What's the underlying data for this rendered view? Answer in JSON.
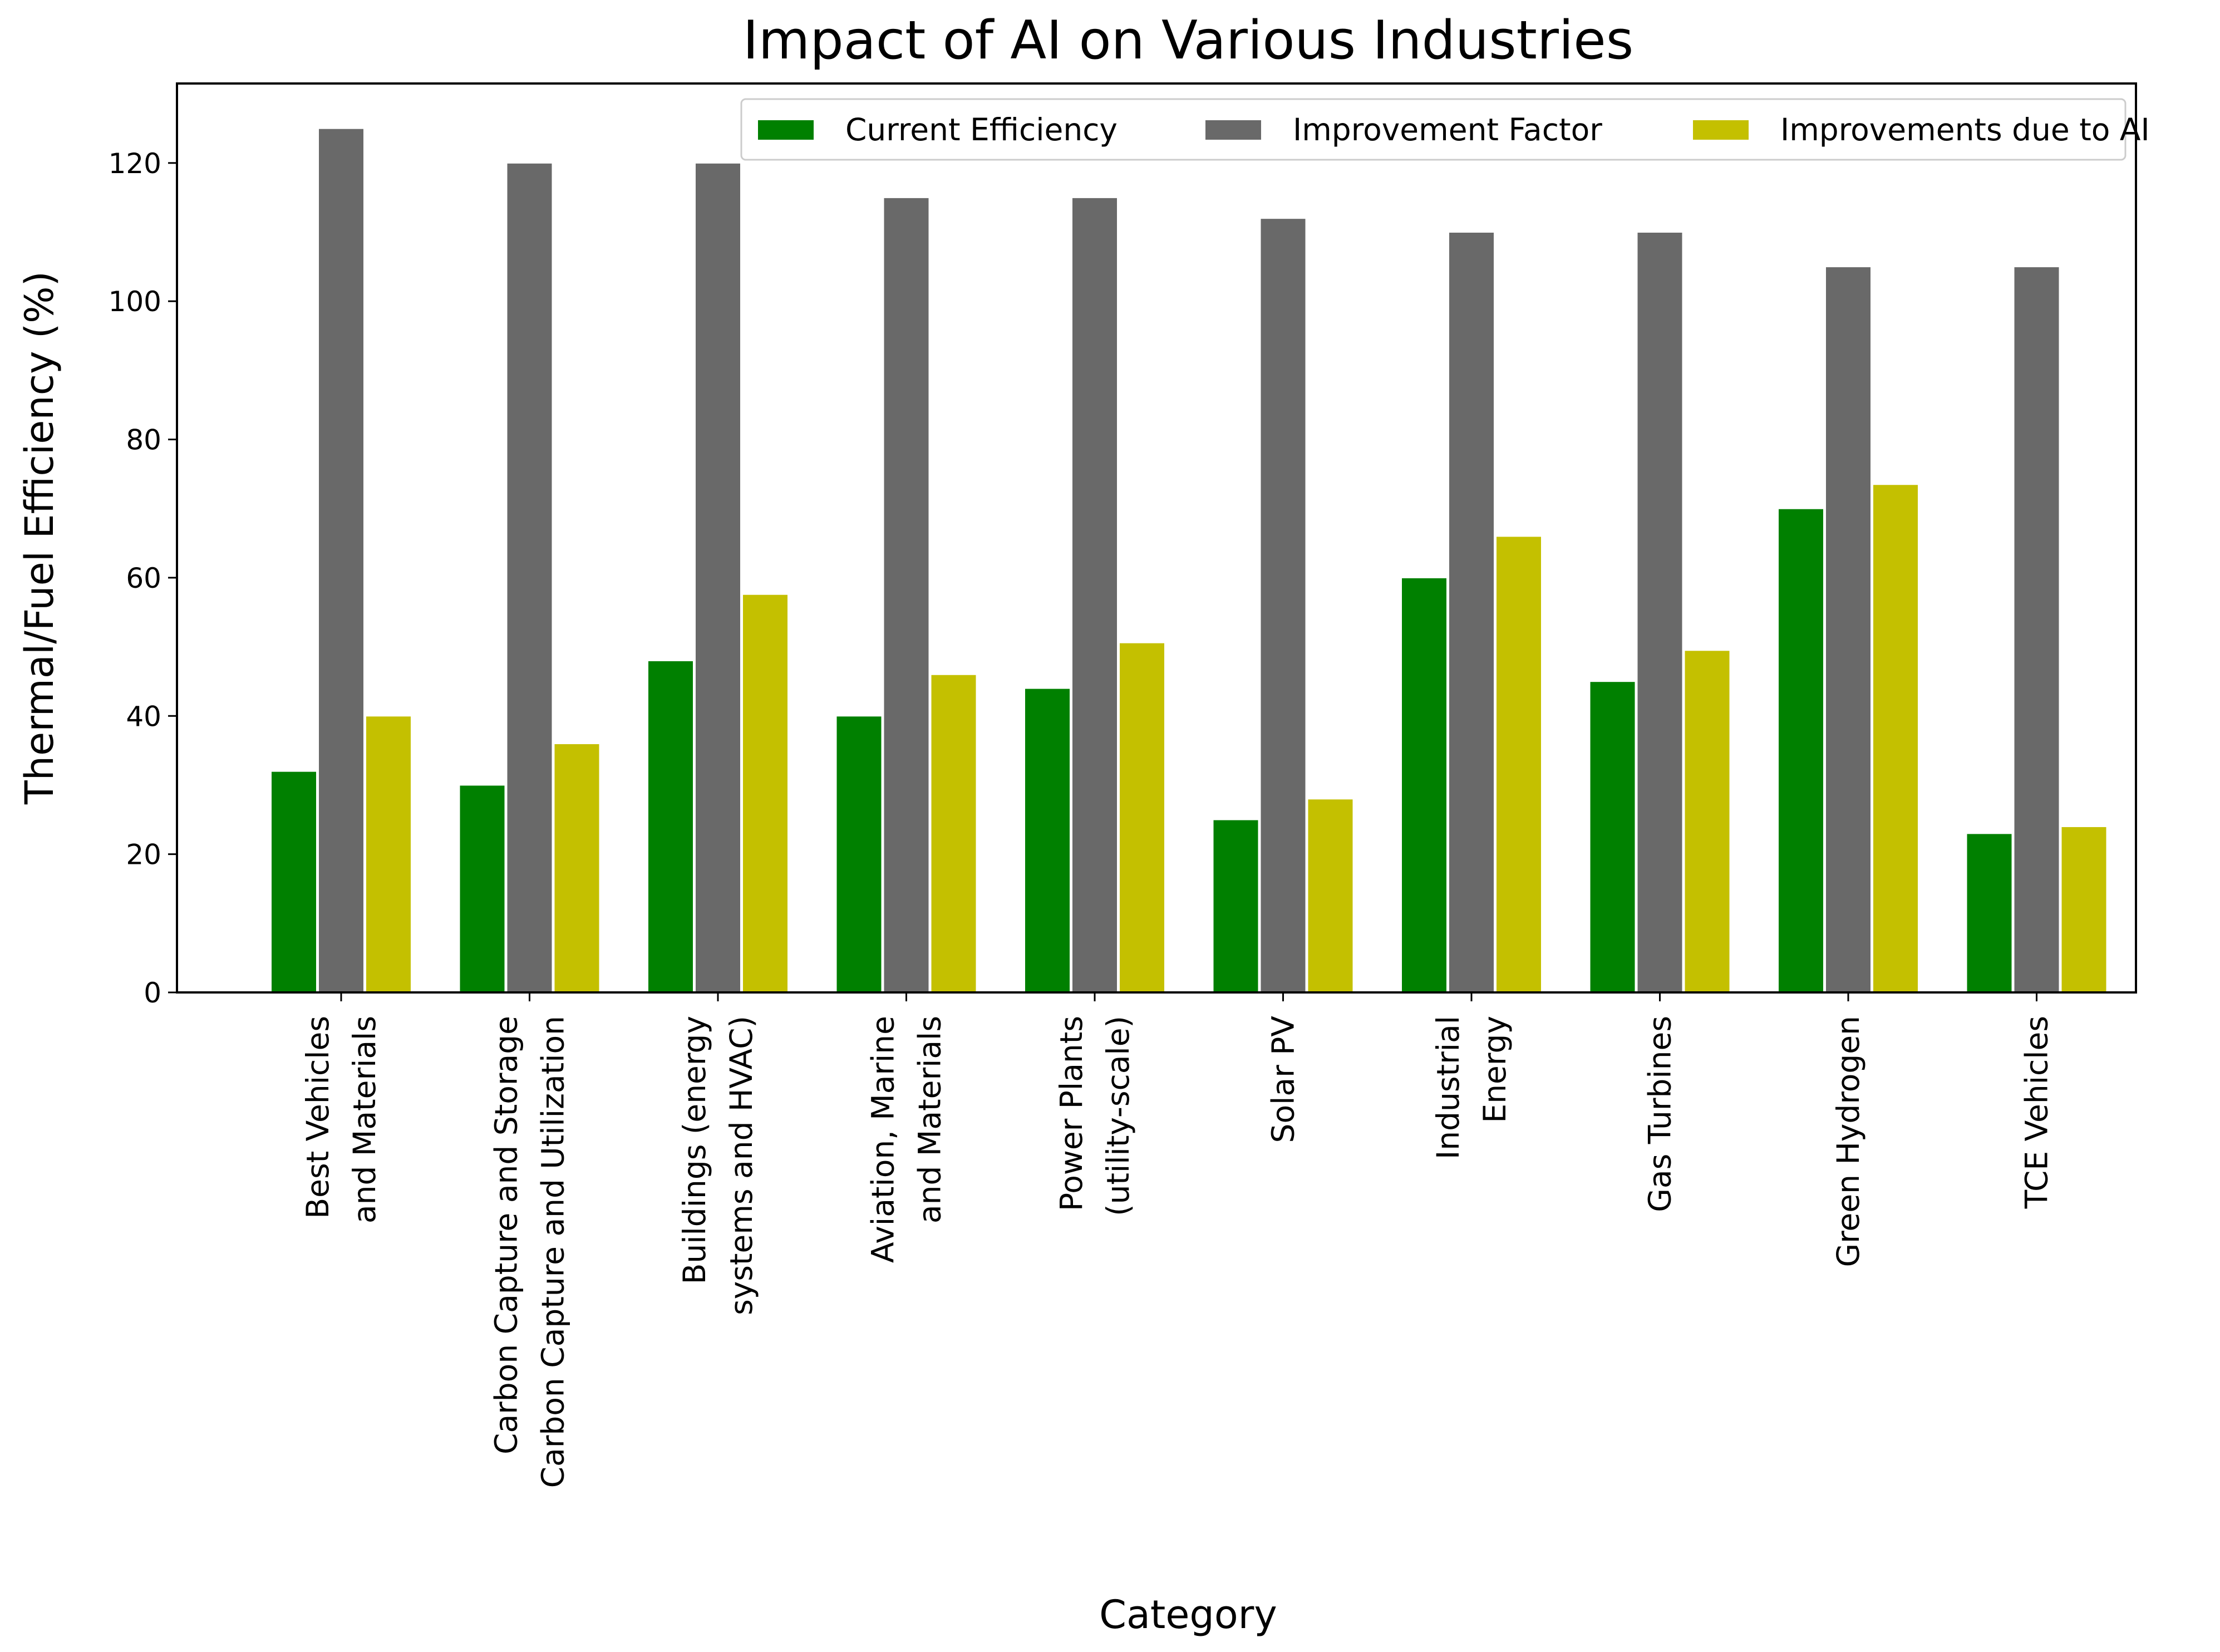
{
  "chart_data": {
    "type": "bar",
    "title": "Impact of AI on Various Industries",
    "xlabel": "Category",
    "ylabel": "Thermal/Fuel Efficiency (%)",
    "ylim": [
      0,
      131.5
    ],
    "yticks": [
      0,
      20,
      40,
      60,
      80,
      100,
      120
    ],
    "grid": false,
    "legend_position": "top-right",
    "categories": [
      [
        "Best Vehicles",
        "and Materials"
      ],
      [
        "Carbon Capture and Storage",
        "Carbon Capture and Utilization"
      ],
      [
        "Buildings (energy",
        "systems and HVAC)"
      ],
      [
        "Aviation, Marine",
        "and Materials"
      ],
      [
        "Power Plants",
        "(utility-scale)"
      ],
      [
        "Solar PV"
      ],
      [
        "Industrial",
        "Energy"
      ],
      [
        "Gas Turbines"
      ],
      [
        "Green Hydrogen"
      ],
      [
        "TCE Vehicles"
      ]
    ],
    "series": [
      {
        "name": "Current Efficiency",
        "color": "#008000",
        "values": [
          32,
          30,
          48,
          40,
          44,
          25,
          60,
          45,
          70,
          23
        ]
      },
      {
        "name": "Improvement Factor",
        "color": "#696969",
        "values": [
          125,
          120,
          120,
          115,
          115,
          112,
          110,
          110,
          105,
          105
        ]
      },
      {
        "name": "Improvements due to AI",
        "color": "#c4c000",
        "values": [
          40,
          36,
          57.6,
          46,
          50.6,
          28,
          66,
          49.5,
          73.5,
          24
        ]
      }
    ]
  }
}
